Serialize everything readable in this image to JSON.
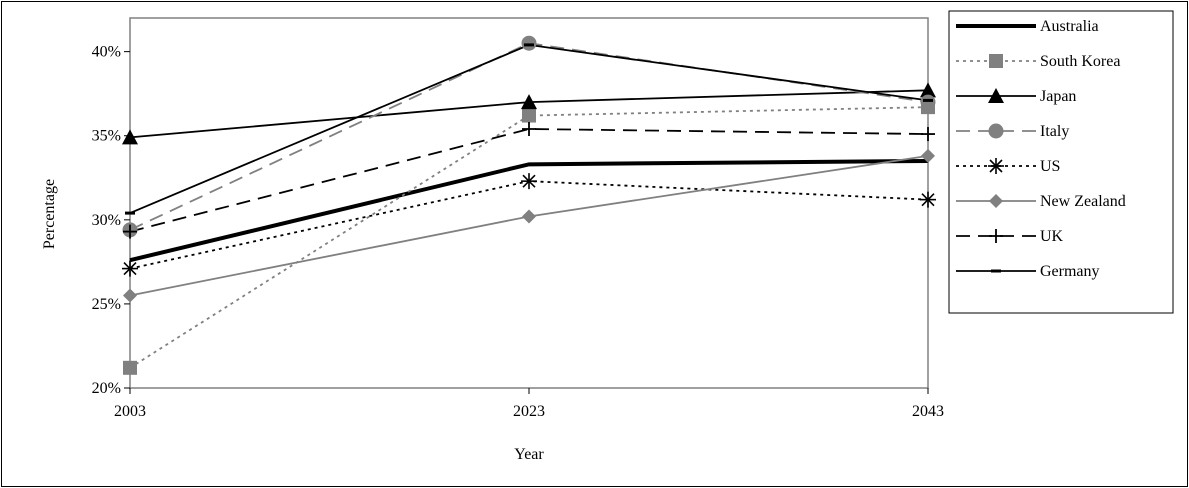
{
  "chart_data": {
    "type": "line",
    "title": "",
    "xlabel": "Year",
    "ylabel": "Percentage",
    "x": [
      "2003",
      "2023",
      "2043"
    ],
    "y_ticks": [
      "20%",
      "25%",
      "30%",
      "35%",
      "40%"
    ],
    "ylim": [
      20,
      42
    ],
    "grid": false,
    "legend_position": "right",
    "series": [
      {
        "name": "Australia",
        "values": [
          27.6,
          33.3,
          33.5
        ],
        "color": "#000000",
        "style": "solid",
        "marker": "none"
      },
      {
        "name": "South Korea",
        "values": [
          21.2,
          36.2,
          36.7
        ],
        "color": "#808080",
        "style": "dotted",
        "marker": "square"
      },
      {
        "name": "Japan",
        "values": [
          34.9,
          37.0,
          37.7
        ],
        "color": "#000000",
        "style": "solid",
        "marker": "triangle"
      },
      {
        "name": "Italy",
        "values": [
          29.4,
          40.5,
          37.0
        ],
        "color": "#808080",
        "style": "dashed",
        "marker": "circle"
      },
      {
        "name": "US",
        "values": [
          27.1,
          32.3,
          31.2
        ],
        "color": "#000000",
        "style": "dotted",
        "marker": "asterisk"
      },
      {
        "name": "New Zealand",
        "values": [
          25.5,
          30.2,
          33.8
        ],
        "color": "#808080",
        "style": "solid",
        "marker": "diamond"
      },
      {
        "name": "UK",
        "values": [
          29.3,
          35.4,
          35.1
        ],
        "color": "#000000",
        "style": "dashed",
        "marker": "plus"
      },
      {
        "name": "Germany",
        "values": [
          30.4,
          40.4,
          37.1
        ],
        "color": "#000000",
        "style": "solid",
        "marker": "dash"
      }
    ]
  }
}
